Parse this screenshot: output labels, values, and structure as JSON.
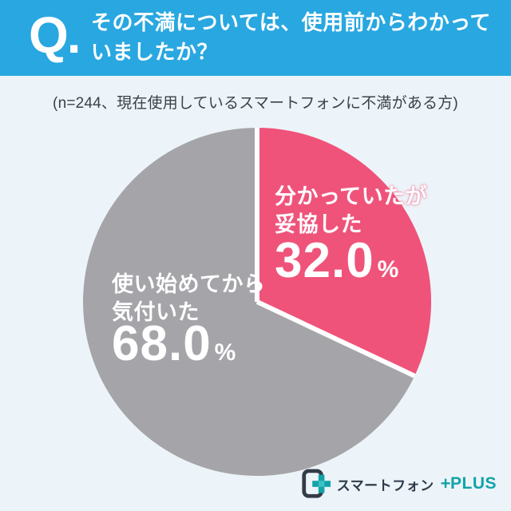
{
  "header": {
    "q_mark": "Q.",
    "question_line1": "その不満については、使用前からわかって",
    "question_line2": "いましたか？",
    "background_color": "#29A7E0"
  },
  "subtitle": {
    "text": "(n=244、現在使用しているスマートフォンに不満がある方)"
  },
  "chart_data": {
    "type": "pie",
    "title": "その不満については、使用前からわかっていましたか？",
    "sample_note": "(n=244、現在使用しているスマートフォンに不満がある方)",
    "start_angle_deg": 0,
    "direction": "clockwise",
    "separator_color": "#FFFFFF",
    "slices": [
      {
        "label": "分かっていたが妥協した",
        "label_lines": [
          "分かっていたが",
          "妥協した"
        ],
        "value": 32.0,
        "value_text": "32.0",
        "unit": "%",
        "color": "#EF5379"
      },
      {
        "label": "使い始めてから気付いた",
        "label_lines": [
          "使い始めてから",
          "気付いた"
        ],
        "value": 68.0,
        "value_text": "68.0",
        "unit": "%",
        "color": "#A5A4A9"
      }
    ]
  },
  "logo": {
    "name_jp": "スマートフォン",
    "plus_sign": "+",
    "name_en": "PLUS",
    "accent_color": "#12A3A8",
    "accent_light": "#3CC1C6",
    "text_color": "#2D3A48",
    "phone_color": "#333C46"
  },
  "colors": {
    "background": "#ECF4F9",
    "header_blue": "#29A7E0",
    "pink": "#EF5379",
    "gray": "#A5A4A9"
  }
}
